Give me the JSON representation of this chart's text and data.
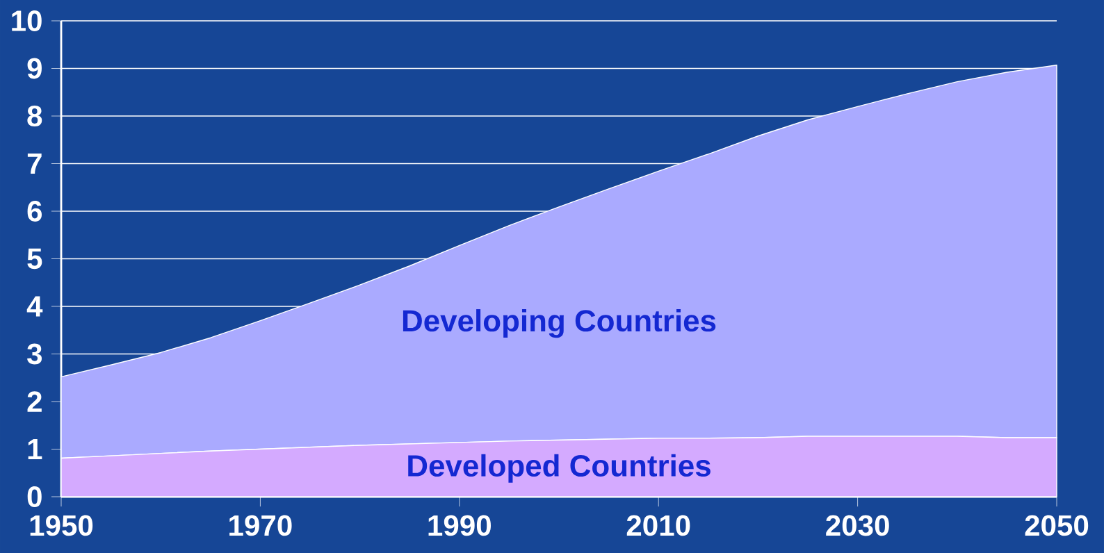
{
  "chart_data": {
    "type": "area",
    "stacked": true,
    "x": [
      1950,
      1955,
      1960,
      1965,
      1970,
      1975,
      1980,
      1985,
      1990,
      1995,
      2000,
      2005,
      2010,
      2015,
      2020,
      2025,
      2030,
      2035,
      2040,
      2045,
      2050
    ],
    "series": [
      {
        "name": "Developed Countries",
        "color": "#d4aaff",
        "values": [
          0.81,
          0.86,
          0.91,
          0.96,
          1.0,
          1.04,
          1.08,
          1.11,
          1.14,
          1.17,
          1.19,
          1.21,
          1.23,
          1.23,
          1.24,
          1.27,
          1.27,
          1.27,
          1.27,
          1.24,
          1.24
        ]
      },
      {
        "name": "Developing Countries",
        "color": "#aaaaff",
        "values": [
          1.71,
          1.91,
          2.12,
          2.38,
          2.7,
          3.03,
          3.37,
          3.74,
          4.14,
          4.53,
          4.9,
          5.26,
          5.61,
          5.97,
          6.34,
          6.65,
          6.93,
          7.2,
          7.45,
          7.68,
          7.83
        ]
      }
    ],
    "xlim": [
      1950,
      2050
    ],
    "xticks": [
      1950,
      1970,
      1990,
      2010,
      2030,
      2050
    ],
    "ylim": [
      0,
      10
    ],
    "yticks": [
      0,
      1,
      2,
      3,
      4,
      5,
      6,
      7,
      8,
      9,
      10
    ],
    "grid": "y",
    "legend": false
  }
}
